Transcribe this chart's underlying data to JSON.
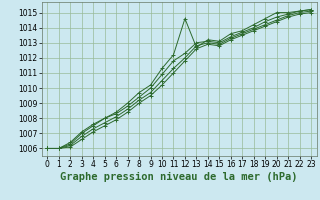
{
  "background_color": "#cce8f0",
  "grid_color": "#99bb99",
  "line_color": "#2d6a2d",
  "title": "Graphe pression niveau de la mer (hPa)",
  "title_fontsize": 7.5,
  "tick_fontsize": 5.5,
  "ylim": [
    1005.5,
    1015.7
  ],
  "xlim": [
    -0.5,
    23.5
  ],
  "yticks": [
    1006,
    1007,
    1008,
    1009,
    1010,
    1011,
    1012,
    1013,
    1014,
    1015
  ],
  "xticks": [
    0,
    1,
    2,
    3,
    4,
    5,
    6,
    7,
    8,
    9,
    10,
    11,
    12,
    13,
    14,
    15,
    16,
    17,
    18,
    19,
    20,
    21,
    22,
    23
  ],
  "series": [
    [
      1006.0,
      1006.0,
      1006.4,
      1007.1,
      1007.6,
      1008.0,
      1008.4,
      1009.0,
      1009.7,
      1010.2,
      1011.3,
      1012.2,
      1014.6,
      1012.7,
      1013.2,
      1013.1,
      1013.6,
      1013.8,
      1014.2,
      1014.6,
      1015.0,
      1015.0,
      1015.1,
      1015.2
    ],
    [
      1006.0,
      1006.0,
      1006.3,
      1007.0,
      1007.5,
      1008.0,
      1008.3,
      1008.8,
      1009.4,
      1010.0,
      1010.9,
      1011.8,
      1012.3,
      1013.0,
      1013.1,
      1013.0,
      1013.4,
      1013.7,
      1014.0,
      1014.4,
      1014.7,
      1014.9,
      1015.1,
      1015.2
    ],
    [
      1006.0,
      1006.0,
      1006.2,
      1006.8,
      1007.3,
      1007.7,
      1008.1,
      1008.6,
      1009.2,
      1009.7,
      1010.5,
      1011.3,
      1012.0,
      1012.8,
      1013.0,
      1012.9,
      1013.3,
      1013.6,
      1013.9,
      1014.2,
      1014.5,
      1014.8,
      1015.0,
      1015.1
    ],
    [
      1006.0,
      1006.0,
      1006.1,
      1006.6,
      1007.1,
      1007.5,
      1007.9,
      1008.4,
      1009.0,
      1009.5,
      1010.2,
      1011.0,
      1011.8,
      1012.6,
      1012.9,
      1012.8,
      1013.2,
      1013.5,
      1013.8,
      1014.1,
      1014.4,
      1014.7,
      1014.9,
      1015.0
    ]
  ]
}
